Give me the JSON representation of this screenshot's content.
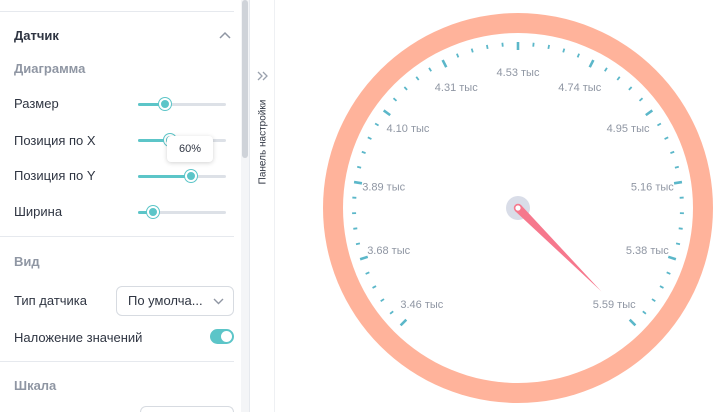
{
  "panel": {
    "section_title": "Датчик",
    "diagram_title": "Диаграмма",
    "sliders": [
      {
        "label": "Размер",
        "value": 0.31
      },
      {
        "label": "Позиция по X",
        "value": 0.36
      },
      {
        "label": "Позиция по Y",
        "value": 0.6
      },
      {
        "label": "Ширина",
        "value": 0.17
      }
    ],
    "tooltip": "60%",
    "view_title": "Вид",
    "gauge_type_label": "Тип датчика",
    "gauge_type_value": "По умолча...",
    "overlay_label": "Наложение значений",
    "overlay_on": true,
    "scale_title": "Шкала"
  },
  "side_tab": {
    "label": "Панель настройки"
  },
  "gauge": {
    "ring_color": "#ffb39b",
    "tick_color": "#5bb7c9",
    "needle_color": "#f6788d",
    "hub_color": "#d9dde8",
    "labels": [
      "3.46 тыс",
      "3.68 тыс",
      "3.89 тыс",
      "4.10 тыс",
      "4.31 тыс",
      "4.53 тыс",
      "4.74 тыс",
      "4.95 тыс",
      "5.16 тыс",
      "5.38 тыс",
      "5.59 тыс"
    ],
    "min": 3460,
    "max": 5590,
    "value": 5590
  }
}
